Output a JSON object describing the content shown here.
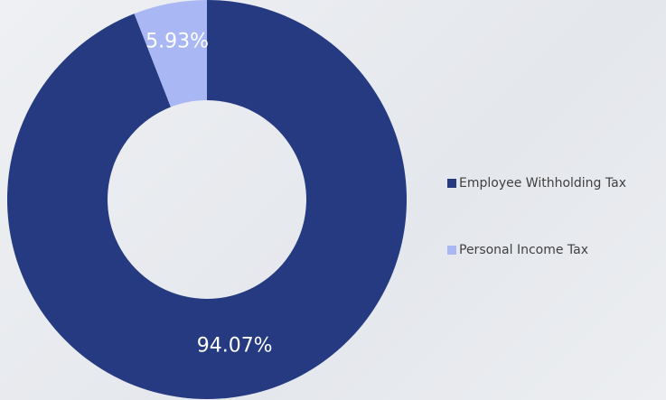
{
  "chart_data": {
    "type": "donut",
    "categories": [
      "Employee Withholding Tax",
      "Personal Income Tax"
    ],
    "values": [
      94.07,
      5.93
    ],
    "value_labels": [
      "94.07%",
      "5.93%"
    ],
    "colors": [
      "#253a80",
      "#a9b8f5"
    ],
    "legend": "right"
  }
}
